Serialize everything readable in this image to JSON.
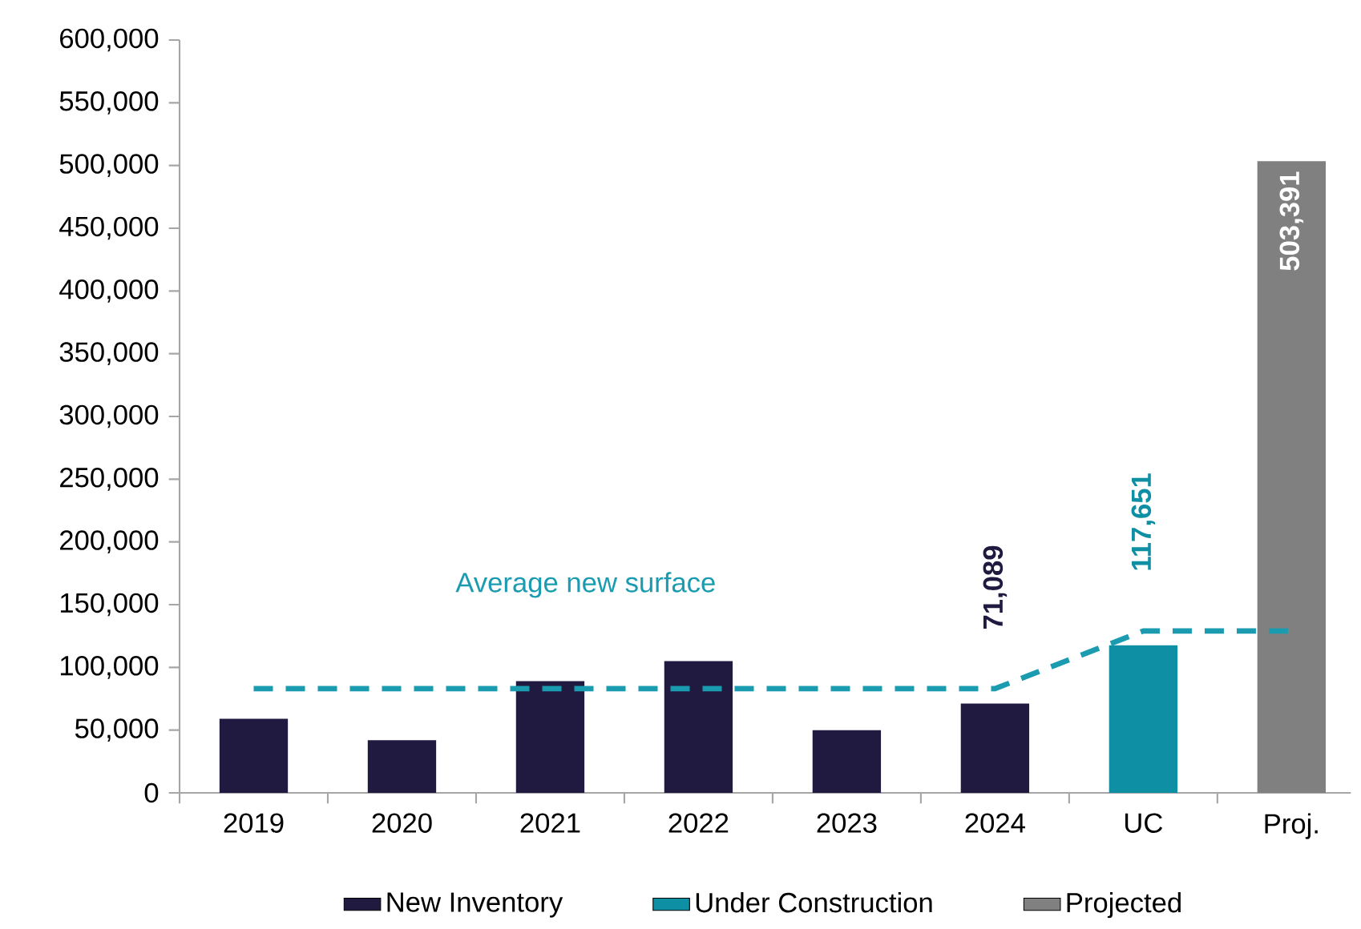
{
  "chart_data": {
    "type": "bar",
    "categories": [
      "2019",
      "2020",
      "2021",
      "2022",
      "2023",
      "2024",
      "UC",
      "Proj."
    ],
    "ylim": [
      0,
      600000
    ],
    "yticks": [
      {
        "value": 0,
        "label": "0"
      },
      {
        "value": 50000,
        "label": "50,000"
      },
      {
        "value": 100000,
        "label": "100,000"
      },
      {
        "value": 150000,
        "label": "150,000"
      },
      {
        "value": 200000,
        "label": "200,000"
      },
      {
        "value": 250000,
        "label": "250,000"
      },
      {
        "value": 300000,
        "label": "300,000"
      },
      {
        "value": 350000,
        "label": "350,000"
      },
      {
        "value": 400000,
        "label": "400,000"
      },
      {
        "value": 450000,
        "label": "450,000"
      },
      {
        "value": 500000,
        "label": "500,000"
      },
      {
        "value": 550000,
        "label": "550,000"
      },
      {
        "value": 600000,
        "label": "600,000"
      }
    ],
    "legend": "bottom",
    "grid": false,
    "series": [
      {
        "name": "New Inventory",
        "color": "#201a40",
        "values": [
          59000,
          42000,
          89000,
          105000,
          50000,
          71089,
          null,
          null
        ],
        "value_labels": [
          null,
          null,
          null,
          null,
          null,
          "71,089",
          null,
          null
        ]
      },
      {
        "name": "Under Construction",
        "color": "#0e8fa3",
        "values": [
          null,
          null,
          null,
          null,
          null,
          null,
          117651,
          null
        ],
        "value_labels": [
          null,
          null,
          null,
          null,
          null,
          null,
          "117,651",
          null
        ]
      },
      {
        "name": "Projected",
        "color": "#808080",
        "values": [
          null,
          null,
          null,
          null,
          null,
          null,
          null,
          503391
        ],
        "value_labels": [
          null,
          null,
          null,
          null,
          null,
          null,
          null,
          "503,391"
        ]
      },
      {
        "name": "Average new surface",
        "type": "line",
        "color": "#1a9bb0",
        "line_style": "dashed",
        "values": [
          83000,
          83000,
          83000,
          83000,
          83000,
          83000,
          129000,
          129000
        ]
      }
    ]
  }
}
